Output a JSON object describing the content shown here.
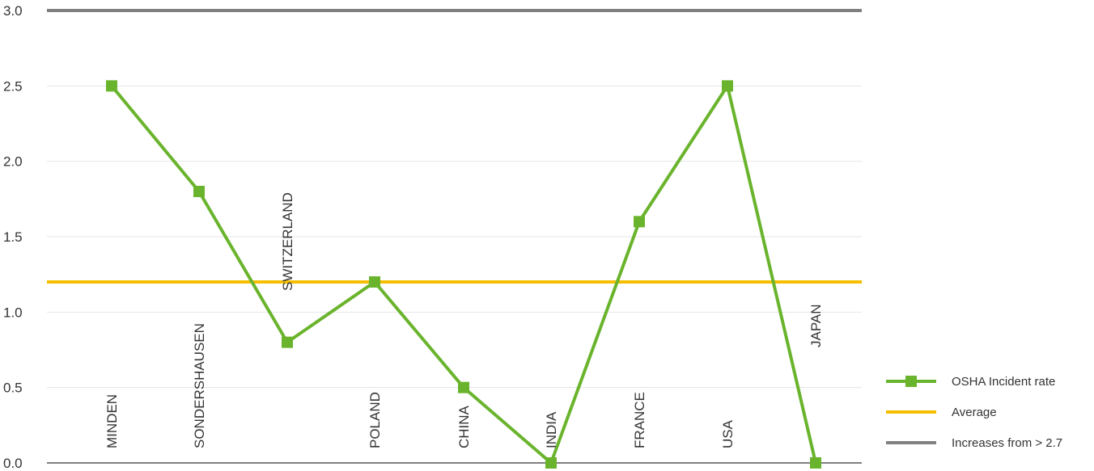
{
  "chart_data": {
    "type": "line",
    "categories": [
      "MINDEN",
      "SONDERSHAUSEN",
      "SWITZERLAND",
      "POLAND",
      "CHINA",
      "INDIA",
      "FRANCE",
      "USA",
      "JAPAN"
    ],
    "series": [
      {
        "name": "OSHA Incident rate",
        "values": [
          2.5,
          1.8,
          0.8,
          1.2,
          0.5,
          0.0,
          1.6,
          2.5,
          0.0
        ],
        "color": "#6ab42d"
      }
    ],
    "reference_lines": [
      {
        "name": "Average",
        "value": 1.2,
        "color": "#f5be00"
      },
      {
        "name": "Increases from > 2.7",
        "value": 3.0,
        "color": "#808080"
      }
    ],
    "y_ticks": [
      "3.0",
      "2.5",
      "2.0",
      "1.5",
      "1.0",
      "0.5",
      "0.0"
    ],
    "ylim": [
      0,
      3.0
    ],
    "grid": true,
    "legend_position": "right"
  }
}
